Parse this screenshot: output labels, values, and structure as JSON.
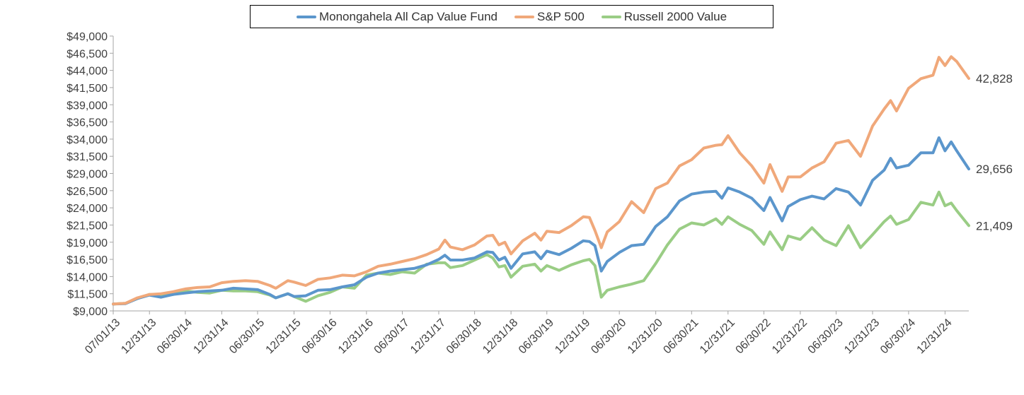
{
  "chart_data": {
    "type": "line",
    "title": "",
    "xlabel": "",
    "ylabel": "",
    "ylim": [
      9000,
      49000
    ],
    "xlim": [
      "2013-07-01",
      "2025-04-30"
    ],
    "y_ticks": [
      "$9,000",
      "$11,500",
      "$14,000",
      "$16,500",
      "$19,000",
      "$21,500",
      "$24,000",
      "$26,500",
      "$29,000",
      "$31,500",
      "$34,000",
      "$36,500",
      "$39,000",
      "$41,500",
      "$44,000",
      "$46,500",
      "$49,000"
    ],
    "x_ticks": [
      "07/01/13",
      "12/31/13",
      "06/30/14",
      "12/31/14",
      "06/30/15",
      "12/31/15",
      "06/30/16",
      "12/31/16",
      "06/30/17",
      "12/31/17",
      "06/30/18",
      "12/31/18",
      "06/30/19",
      "12/31/19",
      "06/30/20",
      "12/31/20",
      "06/30/21",
      "12/31/21",
      "06/30/22",
      "12/31/22",
      "06/30/23",
      "12/31/23",
      "06/30/24",
      "12/31/24"
    ],
    "x_tick_dates": [
      "2013-07-01",
      "2013-12-31",
      "2014-06-30",
      "2014-12-31",
      "2015-06-30",
      "2015-12-31",
      "2016-06-30",
      "2016-12-31",
      "2017-06-30",
      "2017-12-31",
      "2018-06-30",
      "2018-12-31",
      "2019-06-30",
      "2019-12-31",
      "2020-06-30",
      "2020-12-31",
      "2021-06-30",
      "2021-12-31",
      "2022-06-30",
      "2022-12-31",
      "2023-06-30",
      "2023-12-31",
      "2024-06-30",
      "2024-12-31"
    ],
    "legend_position": "top-center",
    "grid": false,
    "series": [
      {
        "name": "Monongahela All Cap Value Fund",
        "color": "#5b96cc",
        "end_label": "29,656",
        "points": [
          [
            "2013-07-01",
            10000
          ],
          [
            "2013-08-31",
            10050
          ],
          [
            "2013-10-31",
            10800
          ],
          [
            "2013-12-31",
            11300
          ],
          [
            "2014-02-28",
            11000
          ],
          [
            "2014-04-30",
            11400
          ],
          [
            "2014-06-30",
            11600
          ],
          [
            "2014-08-31",
            11800
          ],
          [
            "2014-10-31",
            11900
          ],
          [
            "2014-12-31",
            12000
          ],
          [
            "2015-02-28",
            12300
          ],
          [
            "2015-04-30",
            12200
          ],
          [
            "2015-06-30",
            12100
          ],
          [
            "2015-08-31",
            11400
          ],
          [
            "2015-09-30",
            10900
          ],
          [
            "2015-11-30",
            11500
          ],
          [
            "2015-12-31",
            11100
          ],
          [
            "2016-02-28",
            11200
          ],
          [
            "2016-04-30",
            12000
          ],
          [
            "2016-06-30",
            12100
          ],
          [
            "2016-08-31",
            12500
          ],
          [
            "2016-10-31",
            12800
          ],
          [
            "2016-12-31",
            13900
          ],
          [
            "2017-02-28",
            14500
          ],
          [
            "2017-04-30",
            14800
          ],
          [
            "2017-06-30",
            15000
          ],
          [
            "2017-08-31",
            15200
          ],
          [
            "2017-10-31",
            15700
          ],
          [
            "2017-12-31",
            16500
          ],
          [
            "2018-01-31",
            17100
          ],
          [
            "2018-02-28",
            16400
          ],
          [
            "2018-04-30",
            16400
          ],
          [
            "2018-06-30",
            16700
          ],
          [
            "2018-08-31",
            17600
          ],
          [
            "2018-09-30",
            17500
          ],
          [
            "2018-10-31",
            16400
          ],
          [
            "2018-11-30",
            16800
          ],
          [
            "2018-12-31",
            15200
          ],
          [
            "2019-02-28",
            17300
          ],
          [
            "2019-04-30",
            17600
          ],
          [
            "2019-05-31",
            16600
          ],
          [
            "2019-06-30",
            17700
          ],
          [
            "2019-08-31",
            17200
          ],
          [
            "2019-10-31",
            18100
          ],
          [
            "2019-12-31",
            19200
          ],
          [
            "2020-01-31",
            19100
          ],
          [
            "2020-02-28",
            18500
          ],
          [
            "2020-03-31",
            14800
          ],
          [
            "2020-04-30",
            16200
          ],
          [
            "2020-06-30",
            17500
          ],
          [
            "2020-08-31",
            18500
          ],
          [
            "2020-10-31",
            18700
          ],
          [
            "2020-12-31",
            21300
          ],
          [
            "2021-02-28",
            22700
          ],
          [
            "2021-04-30",
            25000
          ],
          [
            "2021-06-30",
            26000
          ],
          [
            "2021-08-31",
            26300
          ],
          [
            "2021-10-31",
            26400
          ],
          [
            "2021-11-30",
            25400
          ],
          [
            "2021-12-31",
            26900
          ],
          [
            "2022-02-28",
            26300
          ],
          [
            "2022-04-30",
            25400
          ],
          [
            "2022-06-30",
            23600
          ],
          [
            "2022-07-31",
            25500
          ],
          [
            "2022-09-30",
            22100
          ],
          [
            "2022-10-31",
            24200
          ],
          [
            "2022-12-31",
            25200
          ],
          [
            "2023-02-28",
            25700
          ],
          [
            "2023-04-30",
            25300
          ],
          [
            "2023-06-30",
            26800
          ],
          [
            "2023-08-31",
            26300
          ],
          [
            "2023-10-31",
            24400
          ],
          [
            "2023-12-31",
            28000
          ],
          [
            "2024-02-28",
            29500
          ],
          [
            "2024-03-31",
            31200
          ],
          [
            "2024-04-30",
            29800
          ],
          [
            "2024-06-30",
            30200
          ],
          [
            "2024-08-31",
            32000
          ],
          [
            "2024-10-31",
            32000
          ],
          [
            "2024-11-30",
            34200
          ],
          [
            "2024-12-31",
            32300
          ],
          [
            "2025-01-31",
            33600
          ],
          [
            "2025-02-28",
            32300
          ],
          [
            "2025-04-30",
            29656
          ]
        ]
      },
      {
        "name": "S&P 500",
        "color": "#f0a87a",
        "end_label": "42,828",
        "points": [
          [
            "2013-07-01",
            10000
          ],
          [
            "2013-08-31",
            10100
          ],
          [
            "2013-10-31",
            10900
          ],
          [
            "2013-12-31",
            11400
          ],
          [
            "2014-02-28",
            11500
          ],
          [
            "2014-04-30",
            11800
          ],
          [
            "2014-06-30",
            12200
          ],
          [
            "2014-08-31",
            12400
          ],
          [
            "2014-10-31",
            12500
          ],
          [
            "2014-12-31",
            13100
          ],
          [
            "2015-02-28",
            13300
          ],
          [
            "2015-04-30",
            13400
          ],
          [
            "2015-06-30",
            13300
          ],
          [
            "2015-08-31",
            12700
          ],
          [
            "2015-09-30",
            12300
          ],
          [
            "2015-11-30",
            13400
          ],
          [
            "2015-12-31",
            13200
          ],
          [
            "2016-02-28",
            12700
          ],
          [
            "2016-04-30",
            13600
          ],
          [
            "2016-06-30",
            13800
          ],
          [
            "2016-08-31",
            14200
          ],
          [
            "2016-10-31",
            14100
          ],
          [
            "2016-12-31",
            14700
          ],
          [
            "2017-02-28",
            15500
          ],
          [
            "2017-04-30",
            15800
          ],
          [
            "2017-06-30",
            16200
          ],
          [
            "2017-08-31",
            16600
          ],
          [
            "2017-10-31",
            17200
          ],
          [
            "2017-12-31",
            18000
          ],
          [
            "2018-01-31",
            19300
          ],
          [
            "2018-02-28",
            18300
          ],
          [
            "2018-04-30",
            17900
          ],
          [
            "2018-06-30",
            18600
          ],
          [
            "2018-08-31",
            19900
          ],
          [
            "2018-09-30",
            20000
          ],
          [
            "2018-10-31",
            18600
          ],
          [
            "2018-11-30",
            19000
          ],
          [
            "2018-12-31",
            17300
          ],
          [
            "2019-02-28",
            19200
          ],
          [
            "2019-04-30",
            20300
          ],
          [
            "2019-05-31",
            19300
          ],
          [
            "2019-06-30",
            20600
          ],
          [
            "2019-08-31",
            20400
          ],
          [
            "2019-10-31",
            21400
          ],
          [
            "2019-12-31",
            22700
          ],
          [
            "2020-01-31",
            22600
          ],
          [
            "2020-02-28",
            20700
          ],
          [
            "2020-03-31",
            18200
          ],
          [
            "2020-04-30",
            20500
          ],
          [
            "2020-06-30",
            22000
          ],
          [
            "2020-08-31",
            24900
          ],
          [
            "2020-10-31",
            23300
          ],
          [
            "2020-12-31",
            26800
          ],
          [
            "2021-02-28",
            27600
          ],
          [
            "2021-04-30",
            30100
          ],
          [
            "2021-06-30",
            31000
          ],
          [
            "2021-08-31",
            32700
          ],
          [
            "2021-10-31",
            33100
          ],
          [
            "2021-11-30",
            33200
          ],
          [
            "2021-12-31",
            34500
          ],
          [
            "2022-02-28",
            32000
          ],
          [
            "2022-04-30",
            30100
          ],
          [
            "2022-06-30",
            27600
          ],
          [
            "2022-07-31",
            30300
          ],
          [
            "2022-09-30",
            26400
          ],
          [
            "2022-10-31",
            28500
          ],
          [
            "2022-12-31",
            28500
          ],
          [
            "2023-02-28",
            29800
          ],
          [
            "2023-04-30",
            30700
          ],
          [
            "2023-06-30",
            33400
          ],
          [
            "2023-08-31",
            33800
          ],
          [
            "2023-10-31",
            31500
          ],
          [
            "2023-12-31",
            35900
          ],
          [
            "2024-02-28",
            38400
          ],
          [
            "2024-03-31",
            39600
          ],
          [
            "2024-04-30",
            38100
          ],
          [
            "2024-06-30",
            41400
          ],
          [
            "2024-08-31",
            42800
          ],
          [
            "2024-10-31",
            43300
          ],
          [
            "2024-11-30",
            45900
          ],
          [
            "2024-12-31",
            44700
          ],
          [
            "2025-01-31",
            46000
          ],
          [
            "2025-02-28",
            45300
          ],
          [
            "2025-04-30",
            42828
          ]
        ]
      },
      {
        "name": "Russell 2000 Value",
        "color": "#9acd85",
        "end_label": "21,409",
        "points": [
          [
            "2013-07-01",
            10000
          ],
          [
            "2013-08-31",
            10100
          ],
          [
            "2013-10-31",
            10800
          ],
          [
            "2013-12-31",
            11400
          ],
          [
            "2014-02-28",
            11300
          ],
          [
            "2014-04-30",
            11400
          ],
          [
            "2014-06-30",
            11900
          ],
          [
            "2014-08-31",
            11700
          ],
          [
            "2014-10-31",
            11600
          ],
          [
            "2014-12-31",
            12000
          ],
          [
            "2015-02-28",
            11900
          ],
          [
            "2015-04-30",
            11900
          ],
          [
            "2015-06-30",
            11800
          ],
          [
            "2015-08-31",
            11300
          ],
          [
            "2015-09-30",
            10900
          ],
          [
            "2015-11-30",
            11500
          ],
          [
            "2015-12-31",
            11100
          ],
          [
            "2016-02-28",
            10400
          ],
          [
            "2016-04-30",
            11200
          ],
          [
            "2016-06-30",
            11700
          ],
          [
            "2016-08-31",
            12500
          ],
          [
            "2016-10-31",
            12300
          ],
          [
            "2016-12-31",
            14200
          ],
          [
            "2017-02-28",
            14500
          ],
          [
            "2017-04-30",
            14300
          ],
          [
            "2017-06-30",
            14700
          ],
          [
            "2017-08-31",
            14500
          ],
          [
            "2017-10-31",
            15800
          ],
          [
            "2017-12-31",
            16000
          ],
          [
            "2018-01-31",
            16000
          ],
          [
            "2018-02-28",
            15300
          ],
          [
            "2018-04-30",
            15600
          ],
          [
            "2018-06-30",
            16400
          ],
          [
            "2018-08-31",
            17200
          ],
          [
            "2018-09-30",
            16700
          ],
          [
            "2018-10-31",
            15400
          ],
          [
            "2018-11-30",
            15600
          ],
          [
            "2018-12-31",
            13900
          ],
          [
            "2019-02-28",
            15500
          ],
          [
            "2019-04-30",
            15800
          ],
          [
            "2019-05-31",
            14800
          ],
          [
            "2019-06-30",
            15600
          ],
          [
            "2019-08-31",
            14900
          ],
          [
            "2019-10-31",
            15700
          ],
          [
            "2019-12-31",
            16300
          ],
          [
            "2020-01-31",
            16500
          ],
          [
            "2020-02-28",
            15600
          ],
          [
            "2020-03-31",
            11000
          ],
          [
            "2020-04-30",
            12000
          ],
          [
            "2020-06-30",
            12500
          ],
          [
            "2020-08-31",
            12900
          ],
          [
            "2020-10-31",
            13400
          ],
          [
            "2020-12-31",
            15900
          ],
          [
            "2021-02-28",
            18600
          ],
          [
            "2021-04-30",
            20900
          ],
          [
            "2021-06-30",
            21800
          ],
          [
            "2021-08-31",
            21500
          ],
          [
            "2021-10-31",
            22400
          ],
          [
            "2021-11-30",
            21600
          ],
          [
            "2021-12-31",
            22700
          ],
          [
            "2022-02-28",
            21600
          ],
          [
            "2022-04-30",
            20700
          ],
          [
            "2022-06-30",
            18700
          ],
          [
            "2022-07-31",
            20500
          ],
          [
            "2022-09-30",
            17900
          ],
          [
            "2022-10-31",
            19900
          ],
          [
            "2022-12-31",
            19400
          ],
          [
            "2023-02-28",
            21100
          ],
          [
            "2023-04-30",
            19300
          ],
          [
            "2023-06-30",
            18500
          ],
          [
            "2023-08-31",
            21400
          ],
          [
            "2023-10-31",
            18200
          ],
          [
            "2023-12-31",
            20100
          ],
          [
            "2024-02-28",
            22000
          ],
          [
            "2024-03-31",
            22800
          ],
          [
            "2024-04-30",
            21600
          ],
          [
            "2024-06-30",
            22300
          ],
          [
            "2024-08-31",
            24800
          ],
          [
            "2024-10-31",
            24400
          ],
          [
            "2024-11-30",
            26300
          ],
          [
            "2024-12-31",
            24300
          ],
          [
            "2025-01-31",
            24700
          ],
          [
            "2025-02-28",
            23600
          ],
          [
            "2025-04-30",
            21409
          ]
        ]
      }
    ]
  }
}
